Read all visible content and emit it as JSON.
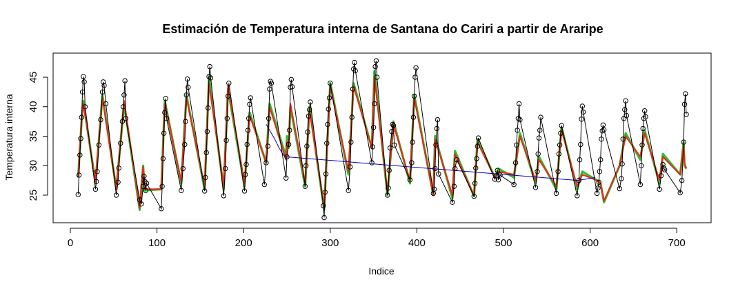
{
  "chart_data": {
    "type": "line",
    "title": "Estimación de Temperatura interna de Santana do Cariri a partir de Araripe",
    "xlabel": "Indice",
    "ylabel": "Temperatura interna",
    "xlim": [
      0,
      730
    ],
    "ylim": [
      20.5,
      48.5
    ],
    "xticks": [
      0,
      100,
      200,
      300,
      400,
      500,
      600,
      700
    ],
    "yticks": [
      25,
      30,
      35,
      40,
      45
    ],
    "grid": false,
    "legend": "none",
    "colors": {
      "observed": "#000000",
      "series_blue": "#0000cc",
      "series_green": "#2fbf2f",
      "series_red": "#e0301e",
      "series_orange": "#e08020"
    },
    "observed": [
      [
        9,
        25.1
      ],
      [
        10,
        28.4
      ],
      [
        11,
        31.8
      ],
      [
        12,
        34.6
      ],
      [
        13,
        38.2
      ],
      [
        14,
        42.5
      ],
      [
        15,
        45.1
      ],
      [
        16,
        44.2
      ],
      [
        17,
        40.0
      ],
      [
        29,
        26.0
      ],
      [
        30,
        27.3
      ],
      [
        31,
        29.0
      ],
      [
        33,
        33.5
      ],
      [
        35,
        37.8
      ],
      [
        37,
        42.5
      ],
      [
        38,
        44.2
      ],
      [
        39,
        43.6
      ],
      [
        41,
        40.5
      ],
      [
        53,
        25.0
      ],
      [
        55,
        27.2
      ],
      [
        56,
        29.6
      ],
      [
        58,
        33.8
      ],
      [
        60,
        37.5
      ],
      [
        61,
        40.0
      ],
      [
        62,
        42.0
      ],
      [
        63,
        44.4
      ],
      [
        64,
        38.0
      ],
      [
        80,
        24.2
      ],
      [
        82,
        23.5
      ],
      [
        84,
        26.5
      ],
      [
        85,
        28.2
      ],
      [
        86,
        27.3
      ],
      [
        87,
        25.8
      ],
      [
        88,
        27.0
      ],
      [
        105,
        22.7
      ],
      [
        106,
        26.5
      ],
      [
        107,
        31.2
      ],
      [
        108,
        35.5
      ],
      [
        109,
        39.0
      ],
      [
        110,
        41.4
      ],
      [
        111,
        38.0
      ],
      [
        128,
        25.8
      ],
      [
        130,
        29.5
      ],
      [
        132,
        33.6
      ],
      [
        133,
        37.5
      ],
      [
        134,
        42.0
      ],
      [
        135,
        44.7
      ],
      [
        136,
        43.3
      ],
      [
        155,
        25.7
      ],
      [
        156,
        28.0
      ],
      [
        157,
        32.2
      ],
      [
        158,
        35.8
      ],
      [
        159,
        39.8
      ],
      [
        160,
        45.1
      ],
      [
        161,
        46.8
      ],
      [
        162,
        44.9
      ],
      [
        177,
        24.9
      ],
      [
        179,
        29.5
      ],
      [
        180,
        34.3
      ],
      [
        181,
        38.0
      ],
      [
        182,
        41.8
      ],
      [
        183,
        44.0
      ],
      [
        201,
        25.7
      ],
      [
        202,
        28.5
      ],
      [
        203,
        30.2
      ],
      [
        204,
        33.6
      ],
      [
        205,
        36.0
      ],
      [
        206,
        38.0
      ],
      [
        207,
        40.4
      ],
      [
        208,
        41.5
      ],
      [
        224,
        26.8
      ],
      [
        226,
        30.5
      ],
      [
        228,
        33.3
      ],
      [
        229,
        38.0
      ],
      [
        230,
        43.0
      ],
      [
        231,
        44.3
      ],
      [
        232,
        44.0
      ],
      [
        249,
        27.9
      ],
      [
        250,
        31.5
      ],
      [
        252,
        33.6
      ],
      [
        253,
        36.0
      ],
      [
        254,
        43.3
      ],
      [
        255,
        44.6
      ],
      [
        256,
        43.4
      ],
      [
        271,
        26.5
      ],
      [
        272,
        30.0
      ],
      [
        273,
        33.3
      ],
      [
        274,
        35.7
      ],
      [
        275,
        38.4
      ],
      [
        276,
        39.5
      ],
      [
        277,
        40.8
      ],
      [
        292,
        23.2
      ],
      [
        293,
        21.2
      ],
      [
        294,
        25.5
      ],
      [
        295,
        28.6
      ],
      [
        296,
        33.8
      ],
      [
        297,
        37.0
      ],
      [
        298,
        39.6
      ],
      [
        299,
        41.5
      ],
      [
        300,
        44.0
      ],
      [
        321,
        25.8
      ],
      [
        323,
        29.8
      ],
      [
        324,
        34.0
      ],
      [
        325,
        38.2
      ],
      [
        326,
        43.0
      ],
      [
        327,
        46.4
      ],
      [
        328,
        47.5
      ],
      [
        329,
        46.1
      ],
      [
        348,
        30.5
      ],
      [
        349,
        33.2
      ],
      [
        350,
        36.5
      ],
      [
        351,
        40.5
      ],
      [
        352,
        46.8
      ],
      [
        353,
        47.8
      ],
      [
        354,
        45.0
      ],
      [
        366,
        25.0
      ],
      [
        367,
        26.2
      ],
      [
        368,
        29.2
      ],
      [
        369,
        33.0
      ],
      [
        371,
        35.8
      ],
      [
        372,
        37.0
      ],
      [
        373,
        36.8
      ],
      [
        374,
        33.5
      ],
      [
        392,
        27.6
      ],
      [
        394,
        30.5
      ],
      [
        395,
        34.0
      ],
      [
        396,
        38.2
      ],
      [
        397,
        41.8
      ],
      [
        398,
        45.0
      ],
      [
        399,
        46.6
      ],
      [
        419,
        25.3
      ],
      [
        420,
        26.0
      ],
      [
        421,
        29.5
      ],
      [
        422,
        33.5
      ],
      [
        423,
        36.3
      ],
      [
        424,
        37.8
      ],
      [
        425,
        28.6
      ],
      [
        441,
        23.8
      ],
      [
        443,
        26.5
      ],
      [
        444,
        29.5
      ],
      [
        446,
        31.0
      ],
      [
        466,
        24.8
      ],
      [
        467,
        27.0
      ],
      [
        468,
        29.6
      ],
      [
        469,
        31.2
      ],
      [
        470,
        33.3
      ],
      [
        471,
        34.7
      ],
      [
        490,
        27.7
      ],
      [
        492,
        28.3
      ],
      [
        493,
        29.2
      ],
      [
        494,
        27.6
      ],
      [
        496,
        28.4
      ],
      [
        512,
        26.8
      ],
      [
        514,
        30.5
      ],
      [
        515,
        33.5
      ],
      [
        516,
        36.0
      ],
      [
        517,
        38.0
      ],
      [
        518,
        40.5
      ],
      [
        519,
        37.8
      ],
      [
        537,
        26.3
      ],
      [
        539,
        29.0
      ],
      [
        540,
        32.0
      ],
      [
        541,
        34.7
      ],
      [
        542,
        36.0
      ],
      [
        543,
        38.2
      ],
      [
        561,
        25.3
      ],
      [
        563,
        29.0
      ],
      [
        564,
        32.0
      ],
      [
        565,
        33.5
      ],
      [
        566,
        35.5
      ],
      [
        567,
        36.8
      ],
      [
        585,
        24.9
      ],
      [
        587,
        27.5
      ],
      [
        588,
        31.0
      ],
      [
        589,
        33.6
      ],
      [
        590,
        37.9
      ],
      [
        591,
        40.1
      ],
      [
        592,
        39.1
      ],
      [
        608,
        25.3
      ],
      [
        609,
        26.2
      ],
      [
        610,
        27.2
      ],
      [
        611,
        29.0
      ],
      [
        612,
        31.0
      ],
      [
        613,
        34.5
      ],
      [
        614,
        35.9
      ],
      [
        615,
        36.9
      ],
      [
        616,
        36.1
      ],
      [
        634,
        26.1
      ],
      [
        636,
        27.8
      ],
      [
        637,
        30.3
      ],
      [
        638,
        34.5
      ],
      [
        639,
        38.0
      ],
      [
        640,
        39.5
      ],
      [
        641,
        41.0
      ],
      [
        642,
        38.5
      ],
      [
        658,
        26.8
      ],
      [
        659,
        30.0
      ],
      [
        660,
        33.5
      ],
      [
        661,
        36.3
      ],
      [
        662,
        38.0
      ],
      [
        663,
        39.3
      ],
      [
        664,
        38.3
      ],
      [
        680,
        26.0
      ],
      [
        682,
        28.3
      ],
      [
        684,
        30.2
      ],
      [
        685,
        29.6
      ],
      [
        686,
        29.3
      ],
      [
        704,
        25.4
      ],
      [
        706,
        27.5
      ],
      [
        708,
        34.0
      ],
      [
        709,
        40.4
      ],
      [
        710,
        42.2
      ],
      [
        711,
        38.7
      ]
    ],
    "series": [
      {
        "color_key": "series_red",
        "values": [
          [
            9,
            28.0
          ],
          [
            13,
            38.0
          ],
          [
            15,
            40.5
          ],
          [
            29,
            27.3
          ],
          [
            37,
            41.5
          ],
          [
            53,
            26.0
          ],
          [
            62,
            41.0
          ],
          [
            80,
            22.8
          ],
          [
            84,
            29.8
          ],
          [
            86,
            26.0
          ],
          [
            105,
            26.0
          ],
          [
            109,
            40.5
          ],
          [
            128,
            27.3
          ],
          [
            134,
            41.5
          ],
          [
            155,
            26.5
          ],
          [
            160,
            44.0
          ],
          [
            177,
            26.5
          ],
          [
            182,
            43.5
          ],
          [
            201,
            27.0
          ],
          [
            207,
            38.5
          ],
          [
            226,
            30.5
          ],
          [
            230,
            40.0
          ],
          [
            249,
            31.0
          ],
          [
            250,
            34.0
          ],
          [
            252,
            33.5
          ],
          [
            254,
            40.5
          ],
          [
            271,
            27.0
          ],
          [
            276,
            39.5
          ],
          [
            293,
            23.0
          ],
          [
            300,
            43.5
          ],
          [
            321,
            29.0
          ],
          [
            327,
            43.5
          ],
          [
            348,
            33.0
          ],
          [
            351,
            45.0
          ],
          [
            366,
            25.5
          ],
          [
            373,
            37.0
          ],
          [
            392,
            27.5
          ],
          [
            397,
            41.5
          ],
          [
            419,
            25.0
          ],
          [
            421,
            34.5
          ],
          [
            441,
            25.0
          ],
          [
            444,
            32.0
          ],
          [
            466,
            25.0
          ],
          [
            470,
            34.0
          ],
          [
            490,
            28.0
          ],
          [
            491,
            28.2
          ],
          [
            494,
            29.0
          ],
          [
            512,
            28.5
          ],
          [
            519,
            35.0
          ],
          [
            537,
            27.5
          ],
          [
            541,
            31.0
          ],
          [
            561,
            26.5
          ],
          [
            567,
            36.0
          ],
          [
            585,
            26.5
          ],
          [
            591,
            28.5
          ],
          [
            608,
            27.5
          ],
          [
            612,
            27.0
          ],
          [
            616,
            24.0
          ],
          [
            634,
            30.0
          ],
          [
            641,
            35.0
          ],
          [
            658,
            31.5
          ],
          [
            663,
            35.5
          ],
          [
            680,
            27.5
          ],
          [
            684,
            31.5
          ],
          [
            704,
            28.5
          ],
          [
            708,
            33.5
          ],
          [
            709,
            30.5
          ],
          [
            711,
            29.5
          ]
        ]
      },
      {
        "color_key": "series_green",
        "values": [
          [
            9,
            28.0
          ],
          [
            13,
            37.5
          ],
          [
            15,
            41.0
          ],
          [
            29,
            27.0
          ],
          [
            37,
            42.0
          ],
          [
            53,
            26.0
          ],
          [
            62,
            40.5
          ],
          [
            80,
            22.5
          ],
          [
            84,
            30.0
          ],
          [
            86,
            25.8
          ],
          [
            105,
            26.0
          ],
          [
            109,
            41.0
          ],
          [
            128,
            27.0
          ],
          [
            134,
            42.0
          ],
          [
            155,
            26.0
          ],
          [
            160,
            45.0
          ],
          [
            177,
            26.0
          ],
          [
            182,
            43.0
          ],
          [
            201,
            26.5
          ],
          [
            207,
            39.0
          ],
          [
            226,
            30.5
          ],
          [
            230,
            40.5
          ],
          [
            249,
            31.5
          ],
          [
            250,
            35.0
          ],
          [
            252,
            33.0
          ],
          [
            254,
            40.0
          ],
          [
            271,
            26.5
          ],
          [
            276,
            40.0
          ],
          [
            293,
            22.5
          ],
          [
            300,
            44.0
          ],
          [
            321,
            28.5
          ],
          [
            327,
            44.0
          ],
          [
            348,
            33.0
          ],
          [
            351,
            46.0
          ],
          [
            366,
            25.0
          ],
          [
            373,
            37.5
          ],
          [
            392,
            27.0
          ],
          [
            397,
            42.0
          ],
          [
            419,
            25.0
          ],
          [
            421,
            35.0
          ],
          [
            441,
            24.5
          ],
          [
            444,
            32.5
          ],
          [
            466,
            24.8
          ],
          [
            470,
            34.5
          ],
          [
            490,
            28.0
          ],
          [
            494,
            29.5
          ],
          [
            512,
            28.0
          ],
          [
            519,
            35.5
          ],
          [
            537,
            27.0
          ],
          [
            541,
            31.5
          ],
          [
            561,
            26.0
          ],
          [
            567,
            36.5
          ],
          [
            585,
            26.0
          ],
          [
            591,
            29.0
          ],
          [
            608,
            27.5
          ],
          [
            612,
            27.0
          ],
          [
            616,
            23.8
          ],
          [
            634,
            30.0
          ],
          [
            641,
            35.5
          ],
          [
            658,
            31.0
          ],
          [
            663,
            36.0
          ],
          [
            680,
            27.0
          ],
          [
            684,
            32.0
          ],
          [
            704,
            28.5
          ],
          [
            708,
            34.0
          ],
          [
            709,
            30.0
          ],
          [
            711,
            29.5
          ]
        ]
      },
      {
        "color_key": "series_blue",
        "values": [
          [
            226,
            37.0
          ],
          [
            236,
            34.5
          ],
          [
            241,
            33.0
          ],
          [
            246,
            31.8
          ],
          [
            249,
            31.5
          ],
          [
            585,
            27.5
          ],
          [
            590,
            27.6
          ],
          [
            598,
            27.8
          ],
          [
            606,
            28.0
          ]
        ]
      }
    ]
  }
}
